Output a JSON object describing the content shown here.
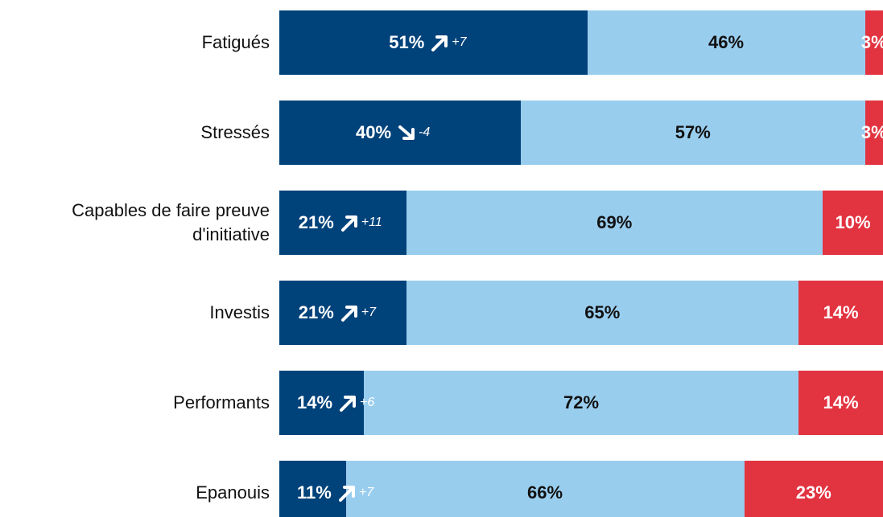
{
  "chart_data": {
    "type": "stacked-bar-horizontal",
    "categories": [
      "Fatigués",
      "Stressés",
      "Capables de faire preuve d'initiative",
      "Investis",
      "Performants",
      "Epanouis"
    ],
    "series": [
      {
        "color": "#00427a",
        "values": [
          51,
          40,
          21,
          21,
          14,
          11
        ],
        "value_labels": [
          "51%",
          "40%",
          "21%",
          "21%",
          "14%",
          "11%"
        ],
        "annotations": [
          "+7",
          "-4",
          "+11",
          "+7",
          "+6",
          "+7"
        ]
      },
      {
        "color": "#99cdee",
        "values": [
          46,
          57,
          69,
          65,
          72,
          66
        ],
        "value_labels": [
          "46%",
          "57%",
          "69%",
          "65%",
          "72%",
          "66%"
        ]
      },
      {
        "color": "#e23340",
        "values": [
          3,
          3,
          10,
          14,
          14,
          23
        ],
        "value_labels": [
          "3%",
          "3%",
          "10%",
          "14%",
          "14%",
          "23%"
        ]
      }
    ]
  }
}
